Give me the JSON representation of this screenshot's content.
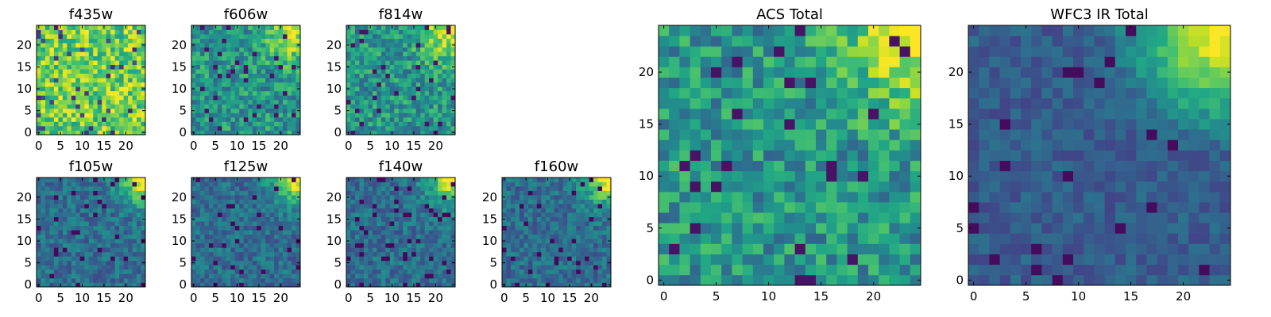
{
  "figure": {
    "background": "#ffffff",
    "colormap": "viridis"
  },
  "chart_data": [
    {
      "type": "heatmap",
      "title": "f435w",
      "grid": [
        25,
        25
      ],
      "xlim": [
        -0.5,
        24.5
      ],
      "ylim": [
        -0.5,
        24.5
      ],
      "xticks": [
        0,
        5,
        10,
        15,
        20
      ],
      "yticks": [
        0,
        5,
        10,
        15,
        20
      ],
      "seed": 11,
      "pattern": "uniform_bright",
      "clim": [
        0,
        1
      ]
    },
    {
      "type": "heatmap",
      "title": "f606w",
      "grid": [
        25,
        25
      ],
      "xlim": [
        -0.5,
        24.5
      ],
      "ylim": [
        -0.5,
        24.5
      ],
      "xticks": [
        0,
        5,
        10,
        15,
        20
      ],
      "yticks": [
        0,
        5,
        10,
        15,
        20
      ],
      "seed": 23,
      "pattern": "noise_with_top_right_glow",
      "clim": [
        0,
        1
      ]
    },
    {
      "type": "heatmap",
      "title": "f814w",
      "grid": [
        25,
        25
      ],
      "xlim": [
        -0.5,
        24.5
      ],
      "ylim": [
        -0.5,
        24.5
      ],
      "xticks": [
        0,
        5,
        10,
        15,
        20
      ],
      "yticks": [
        0,
        5,
        10,
        15,
        20
      ],
      "seed": 37,
      "pattern": "noise_with_top_right_glow",
      "clim": [
        0,
        1
      ]
    },
    {
      "type": "heatmap",
      "title": "f105w",
      "grid": [
        25,
        25
      ],
      "xlim": [
        -0.5,
        24.5
      ],
      "ylim": [
        -0.5,
        24.5
      ],
      "xticks": [
        0,
        5,
        10,
        15,
        20
      ],
      "yticks": [
        0,
        5,
        10,
        15,
        20
      ],
      "seed": 41,
      "pattern": "dark_with_top_right_glow",
      "clim": [
        0,
        1
      ]
    },
    {
      "type": "heatmap",
      "title": "f125w",
      "grid": [
        25,
        25
      ],
      "xlim": [
        -0.5,
        24.5
      ],
      "ylim": [
        -0.5,
        24.5
      ],
      "xticks": [
        0,
        5,
        10,
        15,
        20
      ],
      "yticks": [
        0,
        5,
        10,
        15,
        20
      ],
      "seed": 53,
      "pattern": "dark_with_top_right_glow",
      "clim": [
        0,
        1
      ]
    },
    {
      "type": "heatmap",
      "title": "f140w",
      "grid": [
        25,
        25
      ],
      "xlim": [
        -0.5,
        24.5
      ],
      "ylim": [
        -0.5,
        24.5
      ],
      "xticks": [
        0,
        5,
        10,
        15,
        20
      ],
      "yticks": [
        0,
        5,
        10,
        15,
        20
      ],
      "seed": 67,
      "pattern": "dark_with_top_right_glow",
      "clim": [
        0,
        1
      ]
    },
    {
      "type": "heatmap",
      "title": "f160w",
      "grid": [
        25,
        25
      ],
      "xlim": [
        -0.5,
        24.5
      ],
      "ylim": [
        -0.5,
        24.5
      ],
      "xticks": [
        0,
        5,
        10,
        15,
        20
      ],
      "yticks": [
        0,
        5,
        10,
        15,
        20
      ],
      "seed": 79,
      "pattern": "dark_with_top_right_glow",
      "clim": [
        0,
        1
      ]
    },
    {
      "type": "heatmap",
      "title": "ACS Total",
      "grid": [
        25,
        25
      ],
      "xlim": [
        -0.5,
        24.5
      ],
      "ylim": [
        -0.5,
        24.5
      ],
      "xticks": [
        0,
        5,
        10,
        15,
        20
      ],
      "yticks": [
        0,
        5,
        10,
        15,
        20
      ],
      "seed": 97,
      "pattern": "noise_with_top_right_glow",
      "clim": [
        0,
        1
      ]
    },
    {
      "type": "heatmap",
      "title": "WFC3 IR Total",
      "grid": [
        25,
        25
      ],
      "xlim": [
        -0.5,
        24.5
      ],
      "ylim": [
        -0.5,
        24.5
      ],
      "xticks": [
        0,
        5,
        10,
        15,
        20
      ],
      "yticks": [
        0,
        5,
        10,
        15,
        20
      ],
      "seed": 113,
      "pattern": "smooth_dark_with_top_right_glow",
      "clim": [
        0,
        1
      ]
    }
  ]
}
